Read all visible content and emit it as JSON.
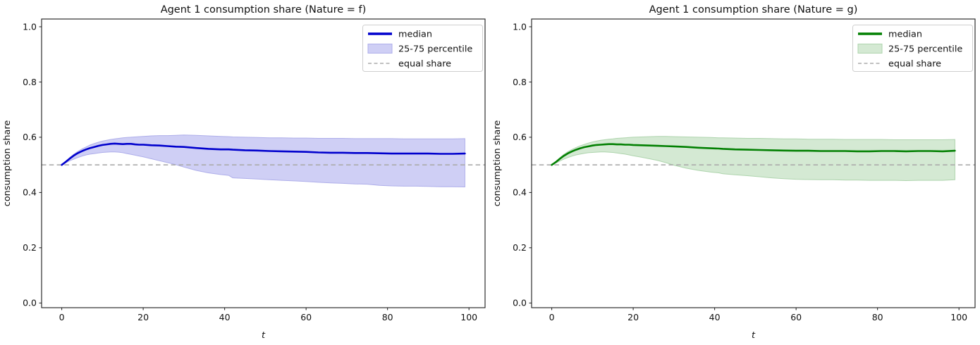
{
  "chart_data": [
    {
      "type": "line",
      "title": "Agent 1 consumption share (Nature = f)",
      "xlabel": "t",
      "ylabel": "consumption share",
      "xlim": [
        -4.95,
        103.95
      ],
      "ylim": [
        -0.017,
        1.028
      ],
      "xticks": [
        0,
        20,
        40,
        60,
        80,
        100
      ],
      "yticks": [
        0.0,
        0.2,
        0.4,
        0.6,
        0.8,
        1.0
      ],
      "grid": false,
      "legend_position": "upper right",
      "equal_share_value": 0.5,
      "colors": {
        "median": "#0000cd",
        "band_fill": "#cfcff5",
        "band_edge": "#aeaeea",
        "equal_share": "#ababab"
      },
      "legend": [
        {
          "label": "median"
        },
        {
          "label": "25-75 percentile"
        },
        {
          "label": "equal share"
        }
      ],
      "x": [
        0,
        1,
        2,
        3,
        4,
        5,
        6,
        7,
        8,
        9,
        10,
        11,
        12,
        13,
        14,
        15,
        16,
        17,
        18,
        19,
        20,
        22,
        24,
        26,
        28,
        30,
        33,
        36,
        39,
        41,
        42,
        45,
        48,
        51,
        54,
        57,
        60,
        63,
        66,
        69,
        72,
        75,
        78,
        81,
        84,
        87,
        90,
        93,
        96,
        99
      ],
      "series": [
        {
          "name": "median",
          "values": [
            0.5,
            0.511,
            0.523,
            0.534,
            0.543,
            0.55,
            0.556,
            0.561,
            0.565,
            0.569,
            0.572,
            0.574,
            0.576,
            0.577,
            0.576,
            0.575,
            0.576,
            0.576,
            0.574,
            0.573,
            0.573,
            0.571,
            0.57,
            0.568,
            0.566,
            0.565,
            0.561,
            0.558,
            0.556,
            0.556,
            0.555,
            0.553,
            0.552,
            0.55,
            0.549,
            0.548,
            0.547,
            0.545,
            0.544,
            0.544,
            0.543,
            0.543,
            0.542,
            0.541,
            0.541,
            0.541,
            0.541,
            0.54,
            0.54,
            0.541
          ]
        },
        {
          "name": "25th percentile",
          "values": [
            0.5,
            0.508,
            0.515,
            0.521,
            0.527,
            0.532,
            0.536,
            0.539,
            0.541,
            0.543,
            0.545,
            0.546,
            0.547,
            0.547,
            0.546,
            0.544,
            0.541,
            0.538,
            0.535,
            0.532,
            0.529,
            0.522,
            0.515,
            0.508,
            0.501,
            0.492,
            0.48,
            0.471,
            0.465,
            0.462,
            0.453,
            0.451,
            0.449,
            0.446,
            0.444,
            0.442,
            0.44,
            0.437,
            0.435,
            0.433,
            0.431,
            0.43,
            0.426,
            0.424,
            0.423,
            0.423,
            0.422,
            0.421,
            0.421,
            0.42
          ]
        },
        {
          "name": "75th percentile",
          "values": [
            0.5,
            0.514,
            0.527,
            0.539,
            0.549,
            0.558,
            0.565,
            0.572,
            0.577,
            0.582,
            0.586,
            0.589,
            0.592,
            0.594,
            0.596,
            0.598,
            0.599,
            0.6,
            0.601,
            0.602,
            0.603,
            0.605,
            0.606,
            0.606,
            0.607,
            0.608,
            0.607,
            0.605,
            0.603,
            0.602,
            0.601,
            0.6,
            0.599,
            0.598,
            0.598,
            0.597,
            0.597,
            0.596,
            0.596,
            0.596,
            0.595,
            0.595,
            0.595,
            0.595,
            0.594,
            0.594,
            0.594,
            0.594,
            0.594,
            0.595
          ]
        }
      ]
    },
    {
      "type": "line",
      "title": "Agent 1 consumption share (Nature = g)",
      "xlabel": "t",
      "ylabel": "consumption share",
      "xlim": [
        -4.95,
        103.95
      ],
      "ylim": [
        -0.017,
        1.028
      ],
      "xticks": [
        0,
        20,
        40,
        60,
        80,
        100
      ],
      "yticks": [
        0.0,
        0.2,
        0.4,
        0.6,
        0.8,
        1.0
      ],
      "grid": false,
      "legend_position": "upper right",
      "equal_share_value": 0.5,
      "colors": {
        "median": "#028002",
        "band_fill": "#d4e9d3",
        "band_edge": "#aed4ad",
        "equal_share": "#ababab"
      },
      "legend": [
        {
          "label": "median"
        },
        {
          "label": "25-75 percentile"
        },
        {
          "label": "equal share"
        }
      ],
      "x": [
        0,
        1,
        2,
        3,
        4,
        5,
        6,
        7,
        8,
        9,
        10,
        11,
        12,
        13,
        14,
        15,
        16,
        17,
        18,
        19,
        20,
        22,
        24,
        26,
        28,
        30,
        33,
        36,
        39,
        41,
        42,
        45,
        48,
        51,
        54,
        57,
        60,
        63,
        66,
        69,
        72,
        75,
        78,
        81,
        84,
        87,
        90,
        93,
        96,
        99
      ],
      "series": [
        {
          "name": "median",
          "values": [
            0.5,
            0.51,
            0.522,
            0.533,
            0.542,
            0.549,
            0.555,
            0.56,
            0.564,
            0.567,
            0.57,
            0.572,
            0.573,
            0.574,
            0.575,
            0.575,
            0.574,
            0.574,
            0.573,
            0.573,
            0.572,
            0.571,
            0.57,
            0.569,
            0.568,
            0.567,
            0.565,
            0.562,
            0.56,
            0.559,
            0.558,
            0.556,
            0.555,
            0.554,
            0.553,
            0.552,
            0.551,
            0.551,
            0.55,
            0.55,
            0.55,
            0.549,
            0.549,
            0.55,
            0.55,
            0.549,
            0.55,
            0.55,
            0.549,
            0.551
          ]
        },
        {
          "name": "25th percentile",
          "values": [
            0.5,
            0.507,
            0.514,
            0.521,
            0.527,
            0.532,
            0.536,
            0.539,
            0.542,
            0.544,
            0.545,
            0.546,
            0.547,
            0.547,
            0.546,
            0.545,
            0.543,
            0.541,
            0.539,
            0.536,
            0.533,
            0.528,
            0.522,
            0.516,
            0.508,
            0.499,
            0.488,
            0.48,
            0.474,
            0.471,
            0.468,
            0.464,
            0.461,
            0.457,
            0.453,
            0.45,
            0.448,
            0.447,
            0.446,
            0.446,
            0.445,
            0.445,
            0.444,
            0.444,
            0.444,
            0.443,
            0.444,
            0.444,
            0.444,
            0.446
          ]
        },
        {
          "name": "75th percentile",
          "values": [
            0.5,
            0.513,
            0.526,
            0.538,
            0.548,
            0.556,
            0.563,
            0.569,
            0.574,
            0.579,
            0.583,
            0.586,
            0.589,
            0.591,
            0.593,
            0.594,
            0.596,
            0.597,
            0.598,
            0.599,
            0.6,
            0.601,
            0.602,
            0.603,
            0.603,
            0.602,
            0.601,
            0.6,
            0.599,
            0.598,
            0.598,
            0.597,
            0.596,
            0.596,
            0.595,
            0.594,
            0.594,
            0.593,
            0.593,
            0.593,
            0.592,
            0.592,
            0.592,
            0.592,
            0.591,
            0.591,
            0.591,
            0.591,
            0.591,
            0.592
          ]
        }
      ]
    }
  ]
}
